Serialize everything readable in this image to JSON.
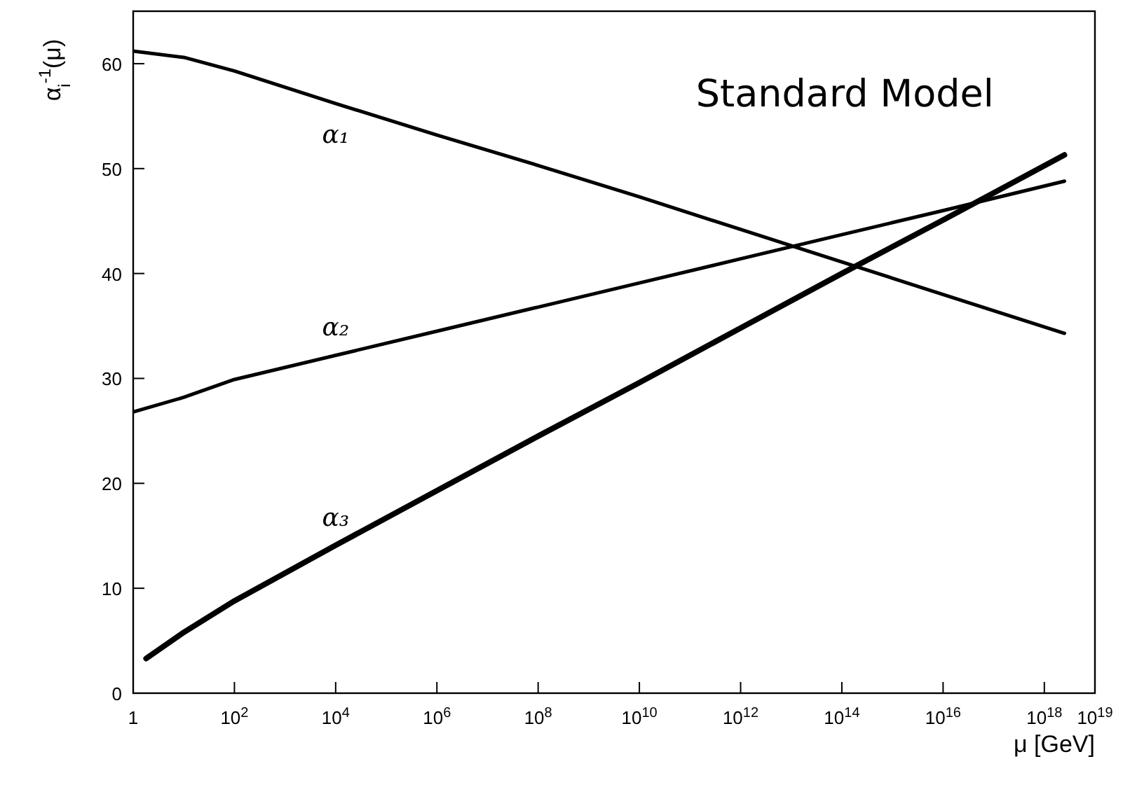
{
  "chart_data": {
    "type": "line",
    "title": "Standard Model",
    "xlabel": "μ [GeV]",
    "ylabel": "α$_{i}$$^{-1}$(μ)",
    "log": "x",
    "xlim": [
      1,
      1e+19
    ],
    "ylim": [
      0,
      65
    ],
    "xticks": [
      1,
      {
        "value": 100.0,
        "label": "10$^{2}$"
      },
      {
        "value": 10000.0,
        "label": "10$^{4}$"
      },
      {
        "value": 1000000.0,
        "label": "10$^{6}$"
      },
      {
        "value": 100000000.0,
        "label": "10$^{8}$"
      },
      {
        "value": 10000000000.0,
        "label": "10$^{10}$"
      },
      {
        "value": 1000000000000.0,
        "label": "10$^{12}$"
      },
      {
        "value": 100000000000000.0,
        "label": "10$^{14}$"
      },
      {
        "value": 1e+16,
        "label": "10$^{16}$"
      },
      {
        "value": 1e+18,
        "label": "10$^{18}$"
      },
      {
        "value": 1e+19,
        "label": "10$^{19}$"
      }
    ],
    "yticks": [
      0,
      10,
      20,
      30,
      40,
      50,
      60
    ],
    "grid": false,
    "legend": false,
    "marker": "none",
    "line_style": "solid",
    "series": [
      {
        "name": "α₁",
        "color": "#000000",
        "x": [
          1,
          10,
          100,
          10000.0,
          1000000.0,
          100000000.0,
          10000000000.0,
          1000000000000.0,
          100000000000000.0,
          1e+16,
          2.5e+18
        ],
        "values": [
          61.2,
          60.6,
          59.3,
          56.2,
          53.2,
          50.3,
          47.3,
          44.2,
          41.1,
          38.0,
          34.3
        ]
      },
      {
        "name": "α₂",
        "color": "#000000",
        "x": [
          1,
          10,
          100,
          10000.0,
          1000000.0,
          100000000.0,
          10000000000.0,
          1000000000000.0,
          100000000000000.0,
          1e+16,
          2.5e+18
        ],
        "values": [
          26.8,
          28.2,
          29.9,
          32.2,
          34.5,
          36.8,
          39.1,
          41.4,
          43.7,
          46.0,
          48.8
        ]
      },
      {
        "name": "α₃",
        "color": "#000000",
        "x": [
          1.8,
          10,
          100,
          10000.0,
          1000000.0,
          100000000.0,
          10000000000.0,
          1000000000000.0,
          100000000000000.0,
          1e+16,
          2.5e+18
        ],
        "values": [
          3.3,
          5.8,
          8.8,
          14.1,
          19.3,
          24.5,
          29.6,
          34.8,
          40.0,
          45.1,
          51.3
        ]
      }
    ]
  }
}
